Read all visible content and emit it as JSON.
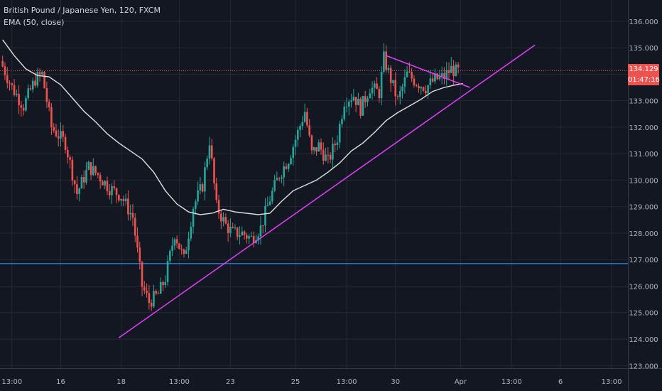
{
  "legend": {
    "symbol": "British Pound / Japanese Yen, 120, FXCM",
    "indicator": "EMA (50, close)"
  },
  "price_tag": {
    "price": "134.129",
    "countdown": "01:47:16"
  },
  "colors": {
    "background": "#131722",
    "grid": "#242836",
    "axis_text": "#b2b5be",
    "up": "#26a69a",
    "down": "#ef5350",
    "ema": "#e0e0e0",
    "trendline": "#e040fb",
    "hline": "#2196f3",
    "price_line": "#ef5350"
  },
  "chart_data": {
    "type": "candlestick",
    "title": "",
    "xlabel": "",
    "ylabel": "",
    "grid": true,
    "ylim": [
      122.9,
      136.8
    ],
    "y_ticks": [
      "123.000",
      "124.000",
      "125.000",
      "126.000",
      "127.000",
      "128.000",
      "129.000",
      "130.000",
      "131.000",
      "132.000",
      "133.000",
      "134.000",
      "135.000",
      "136.000"
    ],
    "y_tick_values": [
      123,
      124,
      125,
      126,
      127,
      128,
      129,
      130,
      131,
      132,
      133,
      134,
      135,
      136
    ],
    "x_ticks": [
      {
        "label": "13:00",
        "bar": 4
      },
      {
        "label": "16",
        "bar": 25
      },
      {
        "label": "18",
        "bar": 51
      },
      {
        "label": "13:00",
        "bar": 76
      },
      {
        "label": "23",
        "bar": 98
      },
      {
        "label": "25",
        "bar": 126
      },
      {
        "label": "13:00",
        "bar": 148
      },
      {
        "label": "30",
        "bar": 169
      },
      {
        "label": "Apr",
        "bar": 197
      },
      {
        "label": "13:00",
        "bar": 219
      },
      {
        "label": "6",
        "bar": 240
      },
      {
        "label": "13:00",
        "bar": 262
      }
    ],
    "bar_range": [
      0,
      270
    ],
    "price_line": 134.129,
    "horizontal_line": 126.85,
    "trendlines": [
      {
        "from": [
          50,
          124.05
        ],
        "to": [
          229,
          135.1
        ]
      },
      {
        "from": [
          165,
          134.7
        ],
        "to": [
          201,
          133.5
        ]
      }
    ],
    "ema_path": [
      [
        0,
        135.3
      ],
      [
        5,
        134.7
      ],
      [
        10,
        134.2
      ],
      [
        15,
        133.95
      ],
      [
        20,
        133.9
      ],
      [
        25,
        133.6
      ],
      [
        30,
        133.1
      ],
      [
        35,
        132.6
      ],
      [
        40,
        132.2
      ],
      [
        45,
        131.75
      ],
      [
        50,
        131.4
      ],
      [
        55,
        131.1
      ],
      [
        60,
        130.8
      ],
      [
        65,
        130.3
      ],
      [
        70,
        129.6
      ],
      [
        75,
        129.1
      ],
      [
        80,
        128.8
      ],
      [
        85,
        128.7
      ],
      [
        90,
        128.75
      ],
      [
        95,
        128.9
      ],
      [
        100,
        128.8
      ],
      [
        105,
        128.75
      ],
      [
        110,
        128.7
      ],
      [
        115,
        128.75
      ],
      [
        120,
        129.2
      ],
      [
        125,
        129.6
      ],
      [
        130,
        129.8
      ],
      [
        135,
        130.0
      ],
      [
        140,
        130.3
      ],
      [
        145,
        130.65
      ],
      [
        150,
        131.1
      ],
      [
        155,
        131.4
      ],
      [
        160,
        131.8
      ],
      [
        165,
        132.25
      ],
      [
        170,
        132.55
      ],
      [
        175,
        132.8
      ],
      [
        180,
        133.05
      ],
      [
        185,
        133.35
      ],
      [
        190,
        133.5
      ],
      [
        195,
        133.6
      ],
      [
        198,
        133.65
      ]
    ],
    "ohlc_anchors": [
      [
        0,
        134.5
      ],
      [
        5,
        133.5
      ],
      [
        10,
        132.8
      ],
      [
        15,
        133.8
      ],
      [
        18,
        134.0
      ],
      [
        22,
        132.0
      ],
      [
        28,
        131.4
      ],
      [
        33,
        129.5
      ],
      [
        38,
        130.5
      ],
      [
        42,
        130.2
      ],
      [
        47,
        129.7
      ],
      [
        52,
        129.4
      ],
      [
        57,
        128.6
      ],
      [
        61,
        126.0
      ],
      [
        64,
        125.4
      ],
      [
        68,
        125.7
      ],
      [
        71,
        126.3
      ],
      [
        75,
        128.0
      ],
      [
        79,
        127.0
      ],
      [
        83,
        129.0
      ],
      [
        87,
        129.8
      ],
      [
        90,
        131.5
      ],
      [
        93,
        129.0
      ],
      [
        97,
        128.3
      ],
      [
        100,
        128.0
      ],
      [
        104,
        128.0
      ],
      [
        108,
        127.8
      ],
      [
        112,
        128.2
      ],
      [
        116,
        129.3
      ],
      [
        120,
        130.2
      ],
      [
        124,
        130.8
      ],
      [
        128,
        131.8
      ],
      [
        131,
        132.6
      ],
      [
        134,
        131.0
      ],
      [
        137,
        131.3
      ],
      [
        141,
        130.7
      ],
      [
        145,
        131.6
      ],
      [
        148,
        133.0
      ],
      [
        152,
        133.2
      ],
      [
        155,
        132.7
      ],
      [
        159,
        133.5
      ],
      [
        163,
        133.3
      ],
      [
        165,
        134.6
      ],
      [
        168,
        133.8
      ],
      [
        171,
        133.0
      ],
      [
        175,
        134.0
      ],
      [
        179,
        133.7
      ],
      [
        183,
        133.5
      ],
      [
        187,
        133.8
      ],
      [
        191,
        133.9
      ],
      [
        194,
        134.2
      ],
      [
        196,
        134.1
      ]
    ]
  }
}
